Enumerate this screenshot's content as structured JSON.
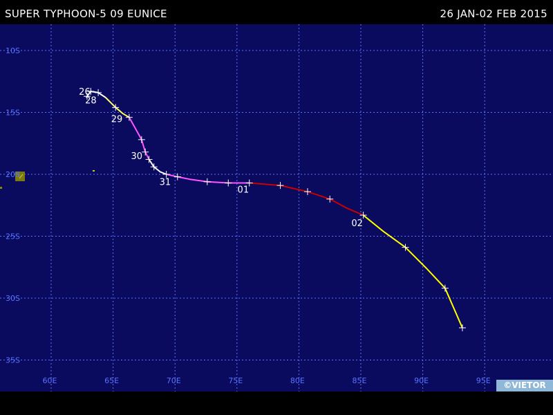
{
  "header": {
    "storm_name": "SUPER TYPHOON-5 09 EUNICE",
    "date_range": "26 JAN-02 FEB 2015"
  },
  "credit": "©VIETOR",
  "colors": {
    "ocean": "#0a0a5e",
    "grid": "#5a74ff",
    "axis_label": "#5a74ff",
    "track_white": "#ffffff",
    "track_magenta": "#ff55ff",
    "track_red": "#cc0000",
    "track_yellow": "#ffff00",
    "land": "#8a8a00"
  },
  "map": {
    "lon_labels": [
      "60E",
      "65E",
      "70E",
      "75E",
      "80E",
      "85E",
      "90E",
      "95E"
    ],
    "lat_labels": [
      "10S",
      "15S",
      "20S",
      "25S",
      "30S",
      "35S"
    ]
  },
  "chart_data": {
    "type": "track",
    "track_segments": [
      {
        "color": "#ffffff",
        "points": [
          [
            62.9,
            13.7
          ],
          [
            63.2,
            13.3
          ],
          [
            63.8,
            13.4
          ],
          [
            64.4,
            13.8
          ]
        ]
      },
      {
        "color": "#ffff66",
        "points": [
          [
            64.4,
            13.8
          ],
          [
            64.8,
            14.2
          ],
          [
            65.2,
            14.6
          ],
          [
            65.8,
            15.1
          ],
          [
            66.3,
            15.4
          ]
        ]
      },
      {
        "color": "#ff55ff",
        "points": [
          [
            66.3,
            15.4
          ],
          [
            66.8,
            16.3
          ],
          [
            67.3,
            17.2
          ],
          [
            67.6,
            18.2
          ],
          [
            67.9,
            18.8
          ]
        ]
      },
      {
        "color": "#ffffff",
        "points": [
          [
            67.9,
            18.8
          ],
          [
            68.3,
            19.4
          ],
          [
            68.8,
            19.8
          ],
          [
            69.3,
            20.0
          ]
        ]
      },
      {
        "color": "#ff55ff",
        "points": [
          [
            69.3,
            20.0
          ],
          [
            70.2,
            20.2
          ],
          [
            71.2,
            20.4
          ],
          [
            72.6,
            20.6
          ],
          [
            74.3,
            20.7
          ],
          [
            76.0,
            20.7
          ]
        ]
      },
      {
        "color": "#cc0000",
        "points": [
          [
            76.0,
            20.7
          ],
          [
            78.5,
            20.9
          ],
          [
            80.7,
            21.4
          ],
          [
            82.5,
            22.0
          ],
          [
            83.8,
            22.7
          ],
          [
            85.2,
            23.3
          ]
        ]
      },
      {
        "color": "#ffff00",
        "points": [
          [
            85.2,
            23.3
          ],
          [
            86.8,
            24.6
          ],
          [
            88.6,
            25.9
          ],
          [
            90.3,
            27.6
          ],
          [
            91.8,
            29.2
          ],
          [
            93.2,
            32.4
          ]
        ]
      }
    ],
    "fix_marks": [
      [
        63.2,
        13.3
      ],
      [
        63.8,
        13.4
      ],
      [
        62.9,
        13.7
      ],
      [
        65.2,
        14.6
      ],
      [
        66.3,
        15.4
      ],
      [
        67.3,
        17.2
      ],
      [
        67.6,
        18.2
      ],
      [
        67.9,
        18.8
      ],
      [
        68.3,
        19.4
      ],
      [
        69.3,
        20.0
      ],
      [
        70.2,
        20.2
      ],
      [
        72.6,
        20.6
      ],
      [
        74.3,
        20.7
      ],
      [
        76.0,
        20.7
      ],
      [
        78.5,
        20.9
      ],
      [
        80.7,
        21.4
      ],
      [
        82.5,
        22.0
      ],
      [
        85.2,
        23.3
      ],
      [
        88.6,
        25.9
      ],
      [
        91.8,
        29.2
      ],
      [
        93.2,
        32.4
      ]
    ],
    "day_labels": [
      {
        "text": "26",
        "lon": 62.8,
        "lat": 13.3
      },
      {
        "text": "28",
        "lon": 63.3,
        "lat": 14.0
      },
      {
        "text": "29",
        "lon": 65.4,
        "lat": 15.5
      },
      {
        "text": "30",
        "lon": 67.0,
        "lat": 18.5
      },
      {
        "text": "31",
        "lon": 69.3,
        "lat": 20.6
      },
      {
        "text": "01",
        "lon": 75.6,
        "lat": 21.2
      },
      {
        "text": "02",
        "lon": 84.8,
        "lat": 23.9
      }
    ],
    "lon_range": [
      57,
      97
    ],
    "lat_range": [
      8.5,
      37.5
    ],
    "grid": true
  }
}
